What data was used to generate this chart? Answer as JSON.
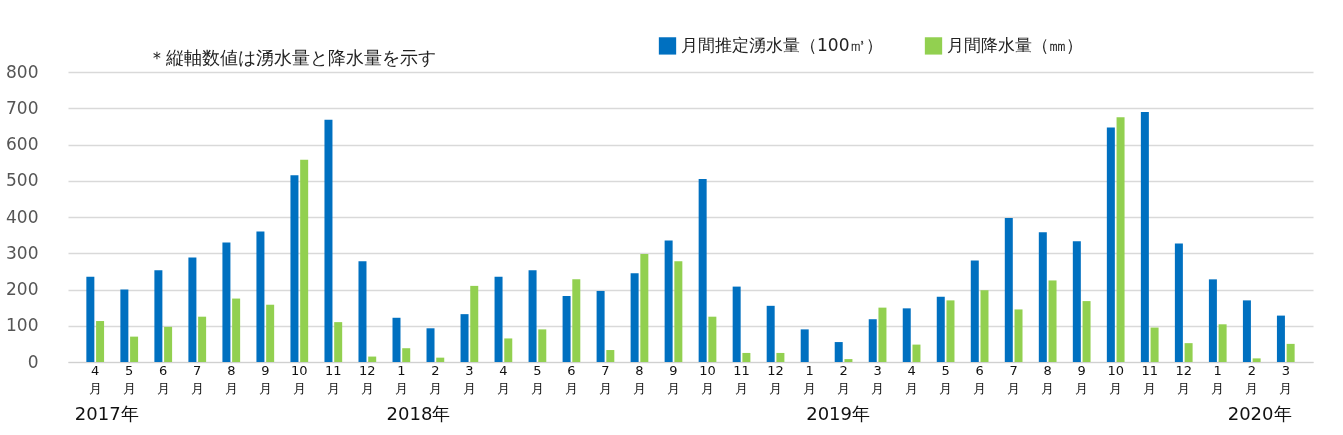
{
  "chart_data": {
    "type": "bar",
    "categories": [
      "4月",
      "5月",
      "6月",
      "7月",
      "8月",
      "9月",
      "10月",
      "11月",
      "12月",
      "1月",
      "2月",
      "3月",
      "4月",
      "5月",
      "6月",
      "7月",
      "8月",
      "9月",
      "10月",
      "11月",
      "12月",
      "1月",
      "2月",
      "3月",
      "4月",
      "5月",
      "6月",
      "7月",
      "8月",
      "9月",
      "10月",
      "11月",
      "12月",
      "1月",
      "2月",
      "3月"
    ],
    "series": [
      {
        "name": "月間推定湧水量（100㎥）",
        "color": "#0070c0",
        "values": [
          235,
          200,
          253,
          288,
          330,
          360,
          515,
          668,
          278,
          122,
          93,
          132,
          235,
          253,
          182,
          196,
          245,
          335,
          505,
          208,
          155,
          90,
          55,
          118,
          148,
          180,
          280,
          397,
          358,
          333,
          647,
          690,
          327,
          228,
          170,
          128
        ]
      },
      {
        "name": "月間降水量（㎜）",
        "color": "#92d050",
        "values": [
          113,
          70,
          97,
          125,
          175,
          158,
          558,
          110,
          15,
          38,
          12,
          210,
          65,
          90,
          228,
          33,
          298,
          278,
          125,
          25,
          25,
          null,
          8,
          150,
          48,
          170,
          198,
          145,
          225,
          168,
          675,
          95,
          52,
          104,
          10,
          50
        ]
      }
    ],
    "ylim": [
      0,
      800
    ],
    "yticks": [
      0,
      100,
      200,
      300,
      400,
      500,
      600,
      700,
      800
    ],
    "grid": "y",
    "legend": "top right",
    "annotations": [
      "＊縦軸数値は湧水量と降水量を示す",
      "2017年",
      "2018年",
      "2019年",
      "2020年"
    ]
  }
}
